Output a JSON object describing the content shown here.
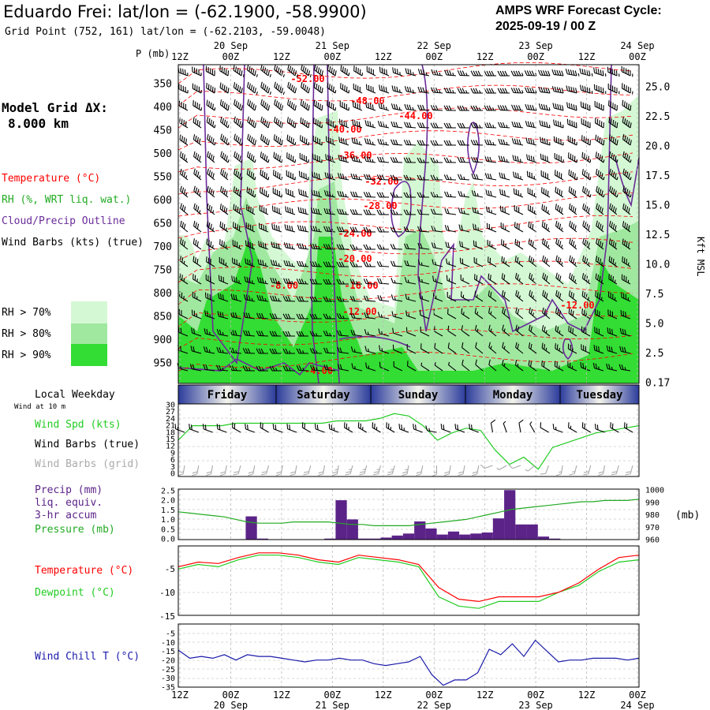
{
  "header": {
    "title": "Eduardo Frei:  lat/lon = (-62.1900, -58.9900)",
    "subtitle": "Grid Point (752, 161) lat/lon = (-62.2103, -59.0048)",
    "cycle_label": "AMPS WRF Forecast Cycle:",
    "cycle_value": "2025-09-19 / 00  Z"
  },
  "time_axis": {
    "hours": [
      "12Z",
      "00Z",
      "12Z",
      "00Z",
      "12Z",
      "00Z",
      "12Z",
      "00Z",
      "12Z",
      "00Z"
    ],
    "dates": [
      "20 Sep",
      "21 Sep",
      "22 Sep",
      "23 Sep",
      "24 Sep"
    ]
  },
  "weekdays": [
    "Friday",
    "Saturday",
    "Sunday",
    "Monday",
    "Tuesday"
  ],
  "left_labels": {
    "pressure_unit": "P (mb)",
    "grid_label": "Model Grid ΔX:",
    "grid_value": "8.000 km",
    "temperature": "Temperature (°C)",
    "rh": "RH (%, WRT liq. wat.)",
    "cloud": "Cloud/Precip Outline",
    "barbs": "Wind Barbs (kts) (true)",
    "rh70": "RH > 70%",
    "rh80": "RH > 80%",
    "rh90": "RH > 90%",
    "local_weekday": "Local Weekday",
    "wind10": "Wind at 10 m",
    "wspd": "Wind Spd (kts)",
    "wbarbs_true": "Wind Barbs (true)",
    "wbarbs_grid": "Wind Barbs (grid)",
    "precip1": "Precip (mm)",
    "precip2": "liq. equiv.",
    "precip3": "3-hr accum",
    "pressure": "Pressure (mb)",
    "temp": "Temperature (°C)",
    "dewpoint": "Dewpoint (°C)",
    "windchill": "Wind Chill T (°C)"
  },
  "right_labels": {
    "kft": "Kft MSL",
    "mb": "(mb)"
  },
  "colors": {
    "temperature": "#ff0000",
    "rh70": "#d4f8d4",
    "rh80": "#a0e8a0",
    "rh90": "#33dd33",
    "cloud": "#6a2c9a",
    "wind_speed": "#22cc22",
    "precip": "#5b2388",
    "pressure": "#22aa22",
    "dewpoint": "#22cc22",
    "windchill": "#1a1aaa",
    "barb_grid": "#aaaaaa"
  },
  "chart_data": [
    {
      "type": "heatmap",
      "name": "cross-section",
      "y_pressure_ticks": [
        "350",
        "400",
        "450",
        "500",
        "550",
        "600",
        "650",
        "700",
        "750",
        "800",
        "850",
        "900",
        "950"
      ],
      "y_height_ticks": [
        "25.0",
        "22.5",
        "20.0",
        "17.5",
        "15.0",
        "12.5",
        "10.0",
        "7.5",
        "5.0",
        "2.5",
        "0.17"
      ],
      "temperature_labels": [
        "-52.00",
        "-48.00",
        "-44.00",
        "-40.00",
        "-36.00",
        "-32.00",
        "-28.00",
        "-24.00",
        "-20.00",
        "-16.00",
        "-12.00",
        "-8.00",
        "-12.00",
        "-4.00"
      ],
      "rh_thresholds": [
        70,
        80,
        90
      ]
    },
    {
      "type": "line",
      "name": "wind",
      "y_ticks": [
        "30",
        "27",
        "24",
        "21",
        "18",
        "15",
        "12",
        "9",
        "6",
        "3",
        "0"
      ],
      "ylim": [
        0,
        30
      ],
      "wind_speed_kts": [
        15,
        21,
        21,
        21,
        22,
        22,
        22,
        22,
        22,
        22,
        22,
        23,
        23,
        23,
        24,
        26,
        25,
        21,
        15,
        18,
        20,
        19,
        11,
        5,
        8,
        3,
        12,
        14,
        16,
        18,
        19,
        20,
        21
      ],
      "barbs_true_dir_deg": [
        290,
        290,
        290,
        290,
        300,
        290,
        300,
        290,
        290,
        300,
        290,
        290,
        300,
        300,
        300,
        300,
        290,
        290,
        280,
        290,
        290,
        290,
        350,
        340,
        350,
        330,
        300,
        290,
        300,
        300,
        290,
        300,
        300
      ],
      "barbs_grid_dir_deg": [
        190,
        190,
        190,
        190,
        195,
        190,
        195,
        190,
        190,
        195,
        190,
        190,
        195,
        195,
        195,
        195,
        190,
        190,
        180,
        190,
        190,
        190,
        250,
        240,
        250,
        230,
        200,
        190,
        195,
        195,
        190,
        195,
        195
      ]
    },
    {
      "type": "bar",
      "name": "precip-pressure",
      "y_ticks_precip": [
        "2.5",
        "2.0",
        "1.5",
        "1.0",
        "0.5",
        "0.0"
      ],
      "y_ticks_pressure": [
        "1000",
        "990",
        "980",
        "970",
        "960"
      ],
      "ylim_precip": [
        0,
        2.5
      ],
      "ylim_pressure": [
        960,
        1000
      ],
      "precip_mm": [
        0,
        0,
        0,
        0,
        0,
        0.02,
        1.15,
        0.05,
        0,
        0,
        0,
        0,
        0,
        0.05,
        1.95,
        1.0,
        0.05,
        0.05,
        0.1,
        0.2,
        0.3,
        0.9,
        0.55,
        0.25,
        0.4,
        0.25,
        0.3,
        0.35,
        1.05,
        2.45,
        0.75,
        0.75,
        0.15,
        0.05,
        0,
        0,
        0,
        0,
        0,
        0,
        0
      ],
      "pressure_mb": [
        982,
        981,
        980,
        979,
        978,
        976,
        974,
        973,
        973,
        973,
        974,
        974,
        974,
        974,
        973,
        972,
        972,
        971,
        971,
        971,
        971,
        972,
        973,
        974,
        975,
        976,
        978,
        980,
        982,
        984,
        985,
        986,
        987,
        988,
        989,
        990,
        990,
        991,
        991,
        991,
        992
      ]
    },
    {
      "type": "line",
      "name": "temperature",
      "y_ticks": [
        "-5",
        "-10",
        "-15"
      ],
      "ylim": [
        -15,
        0
      ],
      "temperature_c": [
        -4.5,
        -3.5,
        -3.8,
        -2.5,
        -1.5,
        -1.5,
        -2.0,
        -3.0,
        -3.5,
        -2.0,
        -2.5,
        -3.0,
        -4.0,
        -9.0,
        -11.5,
        -12.0,
        -11.0,
        -11.0,
        -11.0,
        -10.0,
        -8.0,
        -5.0,
        -2.5,
        -2.0
      ],
      "dewpoint_c": [
        -5.0,
        -4.0,
        -4.5,
        -3.0,
        -2.0,
        -2.0,
        -2.5,
        -3.5,
        -4.0,
        -2.5,
        -3.0,
        -3.5,
        -4.5,
        -11.0,
        -13.0,
        -13.5,
        -12.0,
        -12.0,
        -12.0,
        -10.0,
        -8.5,
        -5.5,
        -3.5,
        -3.0
      ]
    },
    {
      "type": "line",
      "name": "wind-chill",
      "y_ticks": [
        "-5",
        "-10",
        "-15",
        "-20",
        "-25",
        "-30",
        "-35"
      ],
      "ylim": [
        -35,
        0
      ],
      "wind_chill_c": [
        -14.5,
        -19.0,
        -18.0,
        -19.0,
        -17.0,
        -20.0,
        -17.0,
        -18.0,
        -18.0,
        -19.0,
        -20.0,
        -21.0,
        -20.0,
        -20.0,
        -19.0,
        -20.0,
        -20.0,
        -22.0,
        -23.0,
        -22.0,
        -21.0,
        -18.0,
        -28.0,
        -34.0,
        -31.0,
        -31.0,
        -27.0,
        -14.0,
        -17.0,
        -11.0,
        -18.0,
        -9.0,
        -15.0,
        -21.0,
        -20.0,
        -20.0,
        -19.0,
        -19.0,
        -19.0,
        -20.0,
        -19.0
      ]
    }
  ]
}
